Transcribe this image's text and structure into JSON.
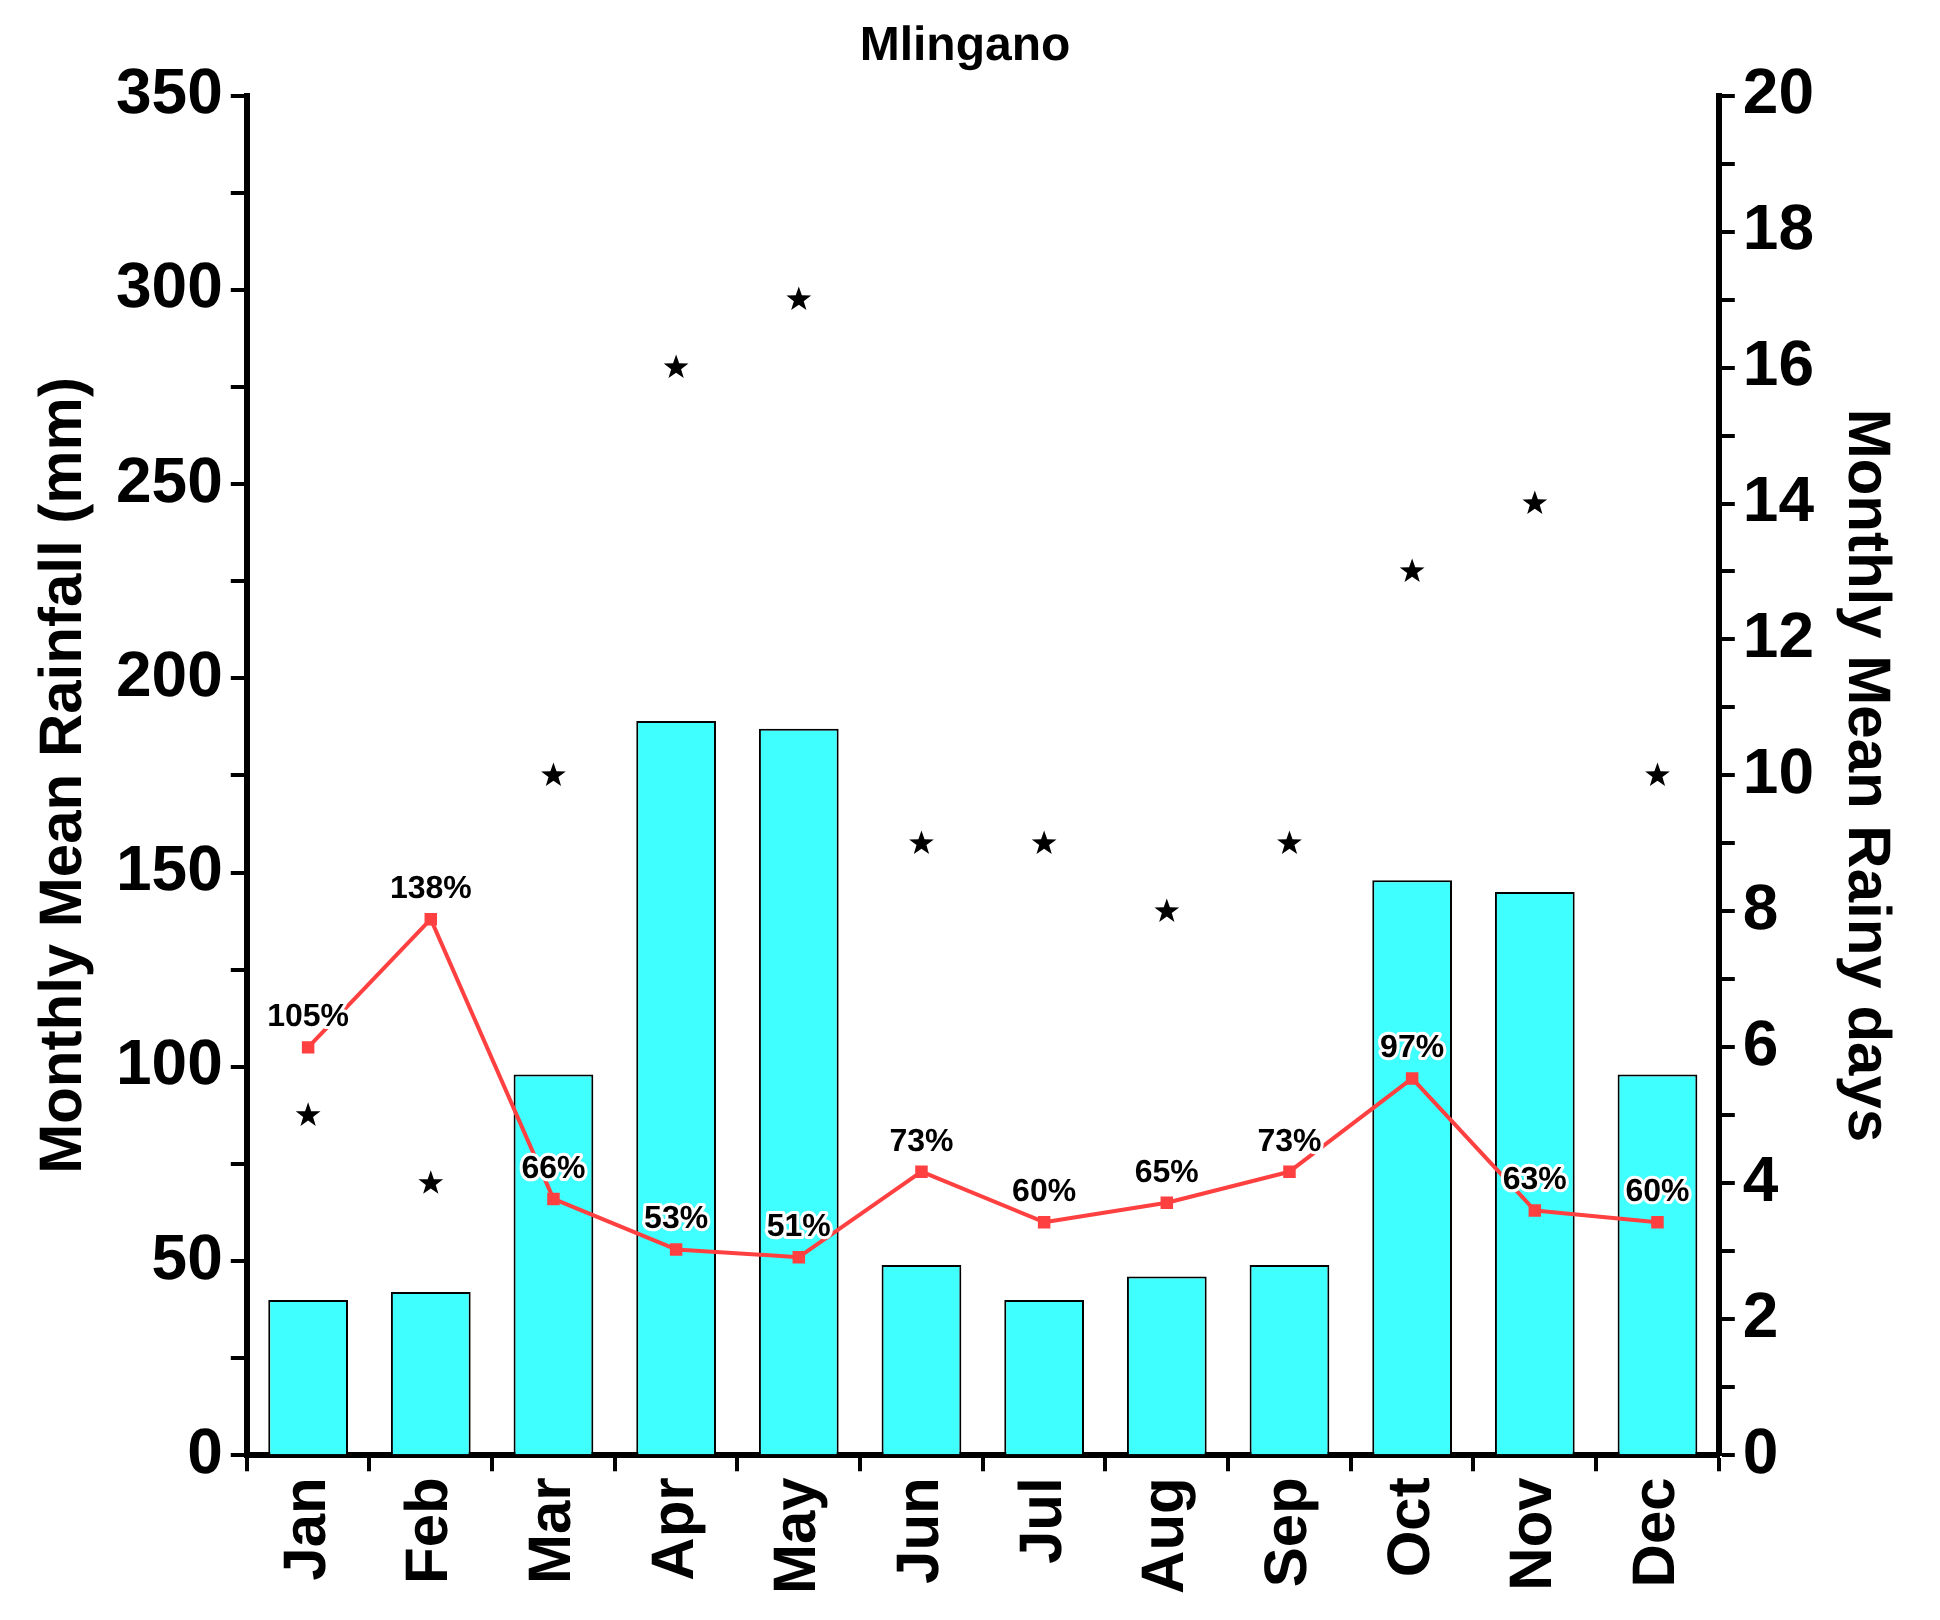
{
  "chart_data": {
    "type": "bar",
    "title": "Mlingano",
    "ylabel": "Monthly Mean Rainfall (mm)",
    "y2label": "Monthly Mean Rainy days",
    "categories": [
      "Jan",
      "Feb",
      "Mar",
      "Apr",
      "May",
      "Jun",
      "Jul",
      "Aug",
      "Sep",
      "Oct",
      "Nov",
      "Dec"
    ],
    "series": [
      {
        "color": "#40ffff",
        "values": [
          40,
          42,
          98,
          189,
          187,
          49,
          40,
          46,
          49,
          148,
          145,
          98
        ]
      },
      {
        "type": "line",
        "color": "#ff4040",
        "marker": "square",
        "values": [
          105,
          138,
          66,
          53,
          51,
          73,
          60,
          65,
          73,
          97,
          63,
          60
        ],
        "value_labels": [
          "105%",
          "138%",
          "66%",
          "53%",
          "51%",
          "73%",
          "60%",
          "65%",
          "73%",
          "97%",
          "63%",
          "60%"
        ]
      },
      {
        "type": "scatter",
        "axis": "y2",
        "color": "#000000",
        "marker": "star",
        "values": [
          5,
          4,
          10,
          16,
          17,
          9,
          9,
          8,
          9,
          13,
          14,
          10
        ]
      }
    ],
    "ylim": [
      0,
      350
    ],
    "yticks": [
      0,
      {
        "value": 25,
        "label": null
      },
      50,
      {
        "value": 75,
        "label": null
      },
      100,
      {
        "value": 125,
        "label": null
      },
      150,
      {
        "value": 175,
        "label": null
      },
      200,
      {
        "value": 225,
        "label": null
      },
      250,
      {
        "value": 275,
        "label": null
      },
      300,
      {
        "value": 325,
        "label": null
      },
      350
    ],
    "y2lim": [
      0,
      20
    ],
    "y2ticks": [
      0,
      {
        "value": 1,
        "label": null
      },
      2,
      {
        "value": 3,
        "label": null
      },
      4,
      {
        "value": 5,
        "label": null
      },
      6,
      {
        "value": 7,
        "label": null
      },
      8,
      {
        "value": 9,
        "label": null
      },
      10,
      {
        "value": 11,
        "label": null
      },
      12,
      {
        "value": 13,
        "label": null
      },
      14,
      {
        "value": 15,
        "label": null
      },
      16,
      {
        "value": 17,
        "label": null
      },
      18,
      {
        "value": 19,
        "label": null
      },
      20
    ],
    "grid": false,
    "legend": false
  }
}
